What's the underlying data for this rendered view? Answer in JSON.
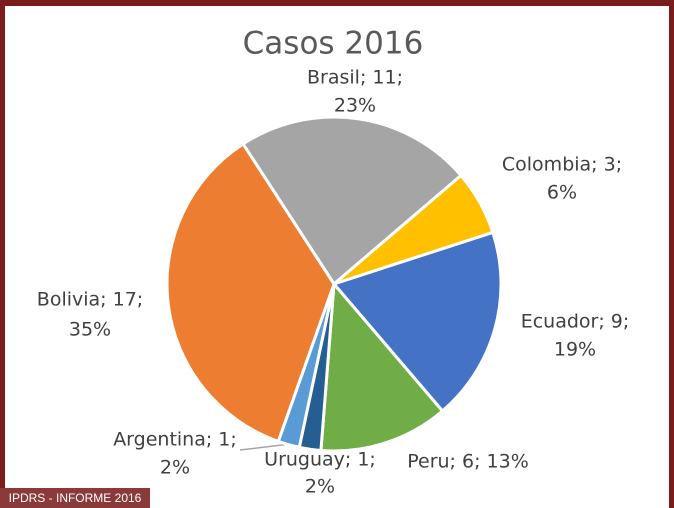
{
  "chart_data": {
    "type": "pie",
    "title": "Casos 2016",
    "categories": [
      "Brasil",
      "Colombia",
      "Ecuador",
      "Peru",
      "Uruguay",
      "Argentina",
      "Bolivia"
    ],
    "values": [
      11,
      3,
      9,
      6,
      1,
      1,
      17
    ],
    "value_labels": [
      [
        "Brasil; 11;",
        "23%"
      ],
      [
        "Colombia; 3;",
        "6%"
      ],
      [
        "Ecuador; 9;",
        "19%"
      ],
      [
        "Peru; 6; 13%"
      ],
      [
        "Uruguay; 1;",
        "2%"
      ],
      [
        "Argentina; 1;",
        "2%"
      ],
      [
        "Bolivia; 17;",
        "35%"
      ]
    ],
    "colors": [
      "#a5a5a5",
      "#ffc000",
      "#4472c4",
      "#70ad47",
      "#255e91",
      "#5b9bd5",
      "#ed7d31"
    ]
  },
  "footer": "IPDRS - INFORME 2016"
}
